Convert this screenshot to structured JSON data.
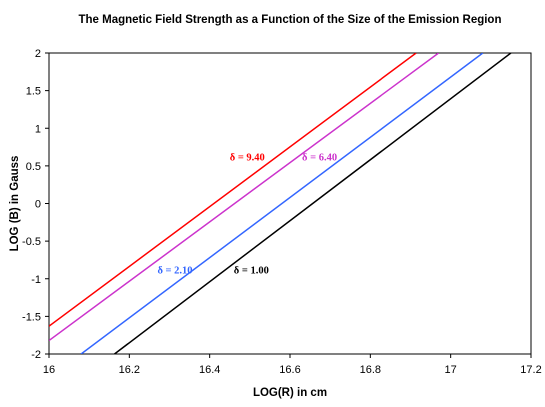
{
  "chart_data": {
    "type": "line",
    "title": "The Magnetic Field Strength as a Function of the Size of the Emission Region",
    "xlabel": "LOG(R) in cm",
    "ylabel": "LOG (B) in Gauss",
    "xlim": [
      16,
      17.2
    ],
    "ylim": [
      -2,
      2
    ],
    "xticks": [
      "16",
      "16.2",
      "16.4",
      "16.6",
      "16.8",
      "17",
      "17.2"
    ],
    "yticks": [
      "2",
      "1.5",
      "1",
      "0.5",
      "0",
      "-0.5",
      "-1",
      "-1.5",
      "-2"
    ],
    "grid": "none",
    "legend": "none",
    "series": [
      {
        "name": "δ = 9.40",
        "color": "#ff0000",
        "x": [
          16.0,
          16.914
        ],
        "y": [
          -1.63,
          2.0
        ]
      },
      {
        "name": "δ = 6.40",
        "color": "#cc33cc",
        "x": [
          16.0,
          16.97
        ],
        "y": [
          -1.82,
          2.0
        ]
      },
      {
        "name": "δ = 2.10",
        "color": "#3366ff",
        "x": [
          16.08,
          17.08
        ],
        "y": [
          -2.0,
          2.0
        ]
      },
      {
        "name": "δ = 1.00",
        "color": "#000000",
        "x": [
          16.163,
          17.15
        ],
        "y": [
          -2.0,
          2.0
        ]
      }
    ],
    "annotations": [
      {
        "text": "δ = 9.40",
        "color": "#ff0000",
        "x": 16.45,
        "y": 0.57
      },
      {
        "text": "δ = 6.40",
        "color": "#cc33cc",
        "x": 16.63,
        "y": 0.57
      },
      {
        "text": "δ = 2.10",
        "color": "#3366ff",
        "x": 16.27,
        "y": -0.93
      },
      {
        "text": "δ = 1.00",
        "color": "#000000",
        "x": 16.46,
        "y": -0.93
      }
    ]
  }
}
